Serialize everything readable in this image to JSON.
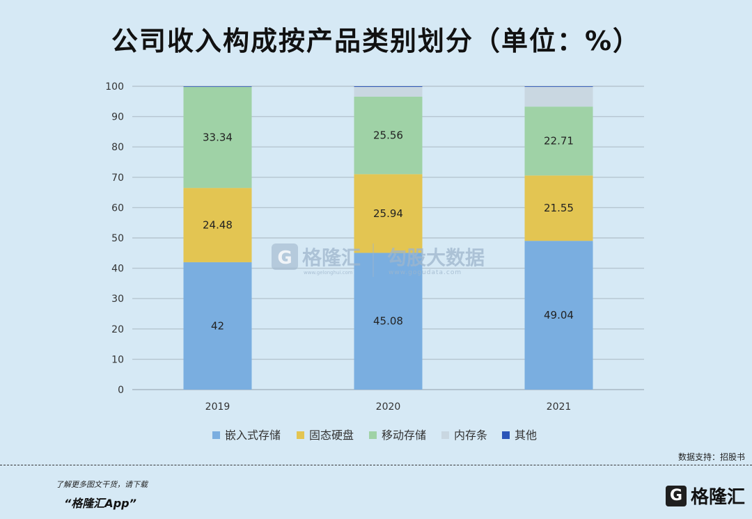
{
  "title": "公司收入构成按产品类别划分（单位：%）",
  "watermark": {
    "brand": "格隆汇",
    "brand_url": "www.gelonghui.com",
    "partner": "勾股大数据",
    "partner_url": "www.gogudata.com"
  },
  "footer": {
    "source": "数据支持：招股书",
    "promo": "了解更多图文干货，请下载",
    "app": "“格隆汇App”",
    "brand_logo": "G",
    "brand_name": "格隆汇"
  },
  "chart_data": {
    "type": "bar",
    "stacked": true,
    "categories": [
      "2019",
      "2020",
      "2021"
    ],
    "series": [
      {
        "name": "嵌入式存储",
        "color": "#7aaee0",
        "values": [
          42,
          45.08,
          49.04
        ],
        "labels": [
          "42",
          "45.08",
          "49.04"
        ]
      },
      {
        "name": "固态硬盘",
        "color": "#e3c552",
        "values": [
          24.48,
          25.94,
          21.55
        ],
        "labels": [
          "24.48",
          "25.94",
          "21.55"
        ]
      },
      {
        "name": "移动存储",
        "color": "#9fd2a6",
        "values": [
          33.34,
          25.56,
          22.71
        ],
        "labels": [
          "33.34",
          "25.56",
          "22.71"
        ]
      },
      {
        "name": "内存条",
        "color": "#c9d7e1",
        "values": [
          0,
          3.2,
          6.5
        ],
        "labels": [
          "",
          "",
          ""
        ]
      },
      {
        "name": "其他",
        "color": "#2b55b8",
        "values": [
          0.18,
          0.22,
          0.2
        ],
        "labels": [
          "",
          "",
          ""
        ]
      }
    ],
    "yticks": [
      "0",
      "10",
      "20",
      "30",
      "40",
      "50",
      "60",
      "70",
      "80",
      "90",
      "100"
    ],
    "ylim": [
      0,
      100
    ],
    "grid": true,
    "legend_position": "bottom"
  }
}
